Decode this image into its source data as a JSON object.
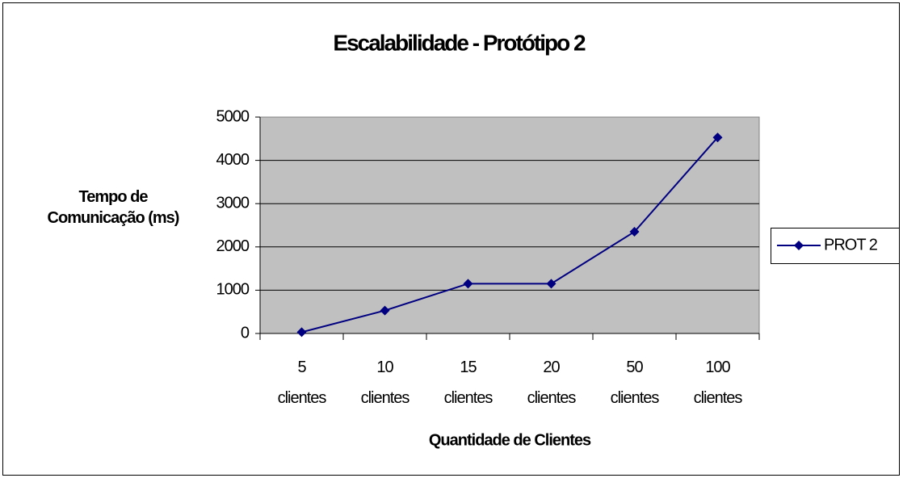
{
  "chart_data": {
    "type": "line",
    "title": "Escalabilidade - Protótipo 2",
    "xlabel": "Quantidade de Clientes",
    "ylabel": "Tempo de Comunicação (ms)",
    "categories": [
      "5 clientes",
      "10 clientes",
      "15 clientes",
      "20 clientes",
      "50 clientes",
      "100 clientes"
    ],
    "series": [
      {
        "name": "PROT 2",
        "color": "#000080",
        "values": [
          30,
          530,
          1150,
          1150,
          2350,
          4530
        ]
      }
    ],
    "ylim": [
      0,
      5000
    ],
    "yticks": [
      0,
      1000,
      2000,
      3000,
      4000,
      5000
    ],
    "grid": true,
    "legend": "right"
  }
}
